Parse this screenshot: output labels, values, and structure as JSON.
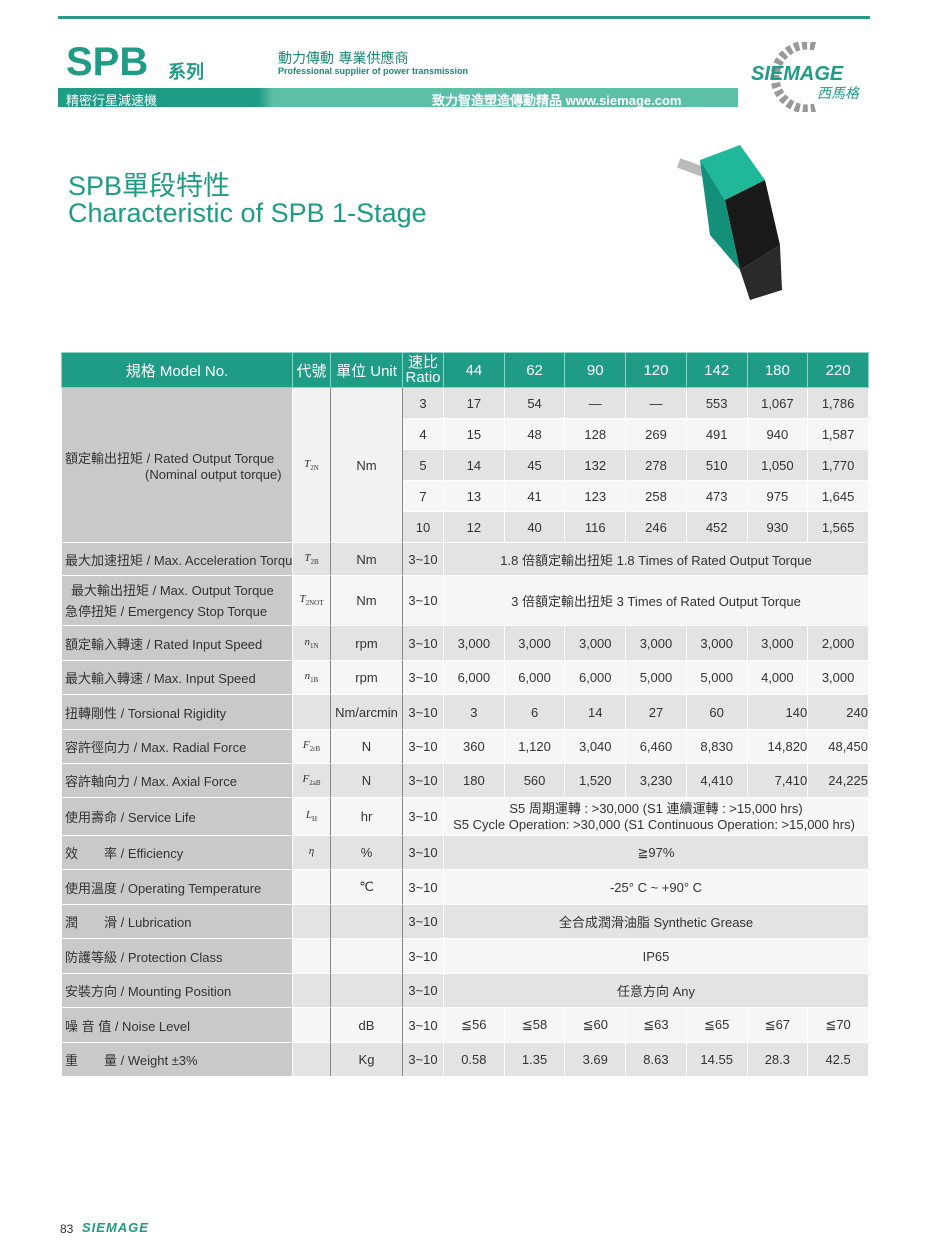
{
  "header": {
    "series": "SPB",
    "series_cn": "系列",
    "slogan_cn": "動力傳動 專業供應商",
    "slogan_en": "Professional supplier of power transmission",
    "band_left": "精密行星減速機",
    "band_right": "致力智造塑造傳動精品  www.siemage.com",
    "logo_text": "SIEMAGE",
    "logo_cn": "西馬格"
  },
  "title": {
    "cn": "SPB單段特性",
    "en": "Characteristic of SPB 1-Stage"
  },
  "table": {
    "headers": {
      "model": "規格 Model No.",
      "symbol": "代號",
      "unit": "單位 Unit",
      "ratio_cn": "速比",
      "ratio_en": "Ratio",
      "models": [
        "44",
        "62",
        "90",
        "120",
        "142",
        "180",
        "220"
      ]
    },
    "rated_torque": {
      "label": "額定輸出扭矩 / Rated Output Torque",
      "label2": "(Nominal output torque)",
      "symbol": "T",
      "sub": "2N",
      "unit": "Nm",
      "rows": [
        {
          "ratio": "3",
          "values": [
            "17",
            "54",
            "—",
            "—",
            "553",
            "1,067",
            "1,786"
          ]
        },
        {
          "ratio": "4",
          "values": [
            "15",
            "48",
            "128",
            "269",
            "491",
            "940",
            "1,587"
          ]
        },
        {
          "ratio": "5",
          "values": [
            "14",
            "45",
            "132",
            "278",
            "510",
            "1,050",
            "1,770"
          ]
        },
        {
          "ratio": "7",
          "values": [
            "13",
            "41",
            "123",
            "258",
            "473",
            "975",
            "1,645"
          ]
        },
        {
          "ratio": "10",
          "values": [
            "12",
            "40",
            "116",
            "246",
            "452",
            "930",
            "1,565"
          ]
        }
      ]
    },
    "rows": [
      {
        "label": "最大加速扭矩 / Max. Acceleration Torque",
        "symbol": "T",
        "sub": "2B",
        "unit": "Nm",
        "ratio": "3~10",
        "span": "1.8 倍額定輸出扭矩  1.8 Times of Rated Output Torque"
      },
      {
        "label": "最大輸出扭矩 / Max. Output Torque",
        "label2": "急停扭矩 / Emergency Stop Torque",
        "symbol": "T",
        "sub": "2NOT",
        "unit": "Nm",
        "ratio": "3~10",
        "span": "3 倍額定輸出扭矩  3 Times of Rated Output Torque"
      },
      {
        "label": "額定輸入轉速 / Rated Input Speed",
        "symbol": "n",
        "sub": "1N",
        "unit": "rpm",
        "ratio": "3~10",
        "values": [
          "3,000",
          "3,000",
          "3,000",
          "3,000",
          "3,000",
          "3,000",
          "2,000"
        ]
      },
      {
        "label": "最大輸入轉速 / Max. Input Speed",
        "symbol": "n",
        "sub": "1B",
        "unit": "rpm",
        "ratio": "3~10",
        "values": [
          "6,000",
          "6,000",
          "6,000",
          "5,000",
          "5,000",
          "4,000",
          "3,000"
        ]
      },
      {
        "label": "扭轉剛性 / Torsional Rigidity",
        "symbol": "",
        "sub": "",
        "unit": "Nm/arcmin",
        "ratio": "3~10",
        "values": [
          "3",
          "6",
          "14",
          "27",
          "60",
          "140",
          "240"
        ]
      },
      {
        "label": "容許徑向力 / Max. Radial Force",
        "symbol": "F",
        "sub": "2rB",
        "unit": "N",
        "ratio": "3~10",
        "values": [
          "360",
          "1,120",
          "3,040",
          "6,460",
          "8,830",
          "14,820",
          "48,450"
        ]
      },
      {
        "label": "容許軸向力 / Max. Axial Force",
        "symbol": "F",
        "sub": "2aB",
        "unit": "N",
        "ratio": "3~10",
        "values": [
          "180",
          "560",
          "1,520",
          "3,230",
          "4,410",
          "7,410",
          "24,225"
        ]
      },
      {
        "label": "使用壽命 / Service Life",
        "symbol": "L",
        "sub": "H",
        "unit": "hr",
        "ratio": "3~10",
        "span": "S5 周期運轉 : >30,000 (S1 連續運轉 : >15,000 hrs)",
        "span2": "S5 Cycle Operation: >30,000 (S1 Continuous Operation: >15,000 hrs)"
      },
      {
        "label": "效　　率 / Efficiency",
        "symbol": "η",
        "sub": "",
        "unit": "%",
        "ratio": "3~10",
        "span": "≧97%"
      },
      {
        "label": "使用溫度 / Operating Temperature",
        "symbol": "",
        "sub": "",
        "unit": "℃",
        "ratio": "3~10",
        "span": "-25° C ~ +90° C"
      },
      {
        "label": "潤　　滑 / Lubrication",
        "symbol": "",
        "sub": "",
        "unit": "",
        "ratio": "3~10",
        "span": "全合成潤滑油脂 Synthetic Grease"
      },
      {
        "label": "防護等級 / Protection Class",
        "symbol": "",
        "sub": "",
        "unit": "",
        "ratio": "3~10",
        "span": "IP65"
      },
      {
        "label": "安裝方向 / Mounting Position",
        "symbol": "",
        "sub": "",
        "unit": "",
        "ratio": "3~10",
        "span": "任意方向 Any"
      },
      {
        "label": "噪 音 值 / Noise Level",
        "symbol": "",
        "sub": "",
        "unit": "dB",
        "ratio": "3~10",
        "values": [
          "≦56",
          "≦58",
          "≦60",
          "≦63",
          "≦65",
          "≦67",
          "≦70"
        ]
      },
      {
        "label": "重　　量 / Weight ±3%",
        "symbol": "",
        "sub": "",
        "unit": "Kg",
        "ratio": "3~10",
        "values": [
          "0.58",
          "1.35",
          "3.69",
          "8.63",
          "14.55",
          "28.3",
          "42.5"
        ]
      }
    ]
  },
  "footer": {
    "page": "83",
    "logo": "SIEMAGE"
  },
  "colors": {
    "brand": "#1e9c86"
  }
}
